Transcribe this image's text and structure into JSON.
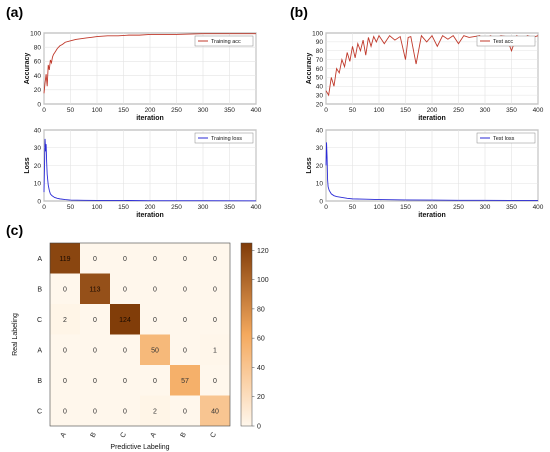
{
  "panels": {
    "a": "(a)",
    "b": "(b)",
    "c": "(c)"
  },
  "chart_data": [
    {
      "id": "train-acc",
      "type": "line",
      "xlabel": "iteration",
      "ylabel": "Accuracy",
      "xlim": [
        0,
        400
      ],
      "ylim": [
        0,
        100
      ],
      "xticks": [
        0,
        50,
        100,
        150,
        200,
        250,
        300,
        350,
        400
      ],
      "yticks": [
        0,
        20,
        40,
        60,
        80,
        100
      ],
      "grid": true,
      "legend_position": "top-right",
      "series": [
        {
          "name": "Training  acc",
          "color": "#c0392b",
          "x": [
            0,
            2,
            4,
            6,
            8,
            10,
            12,
            14,
            16,
            18,
            20,
            25,
            30,
            35,
            40,
            50,
            60,
            70,
            80,
            90,
            100,
            120,
            140,
            160,
            180,
            200,
            250,
            300,
            350,
            400
          ],
          "y": [
            15,
            30,
            42,
            25,
            55,
            48,
            62,
            58,
            66,
            70,
            72,
            78,
            82,
            84,
            87,
            89,
            91,
            92,
            93,
            94,
            95,
            96,
            96,
            97,
            97,
            98,
            98,
            99,
            99,
            99
          ]
        }
      ]
    },
    {
      "id": "train-loss",
      "type": "line",
      "xlabel": "iteration",
      "ylabel": "Loss",
      "xlim": [
        0,
        400
      ],
      "ylim": [
        0,
        40
      ],
      "xticks": [
        0,
        50,
        100,
        150,
        200,
        250,
        300,
        350,
        400
      ],
      "yticks": [
        0,
        10,
        20,
        30,
        40
      ],
      "grid": true,
      "legend_position": "top-right",
      "series": [
        {
          "name": "Training  loss",
          "color": "#2b2bd6",
          "x": [
            0,
            1,
            2,
            3,
            4,
            5,
            6,
            8,
            10,
            12,
            15,
            20,
            25,
            30,
            40,
            50,
            75,
            100,
            150,
            200,
            300,
            400
          ],
          "y": [
            5,
            20,
            35,
            28,
            32,
            22,
            15,
            9,
            6,
            4,
            3,
            2,
            1.5,
            1.2,
            0.8,
            0.5,
            0.4,
            0.3,
            0.3,
            0.2,
            0.2,
            0.1
          ]
        }
      ]
    },
    {
      "id": "test-acc",
      "type": "line",
      "xlabel": "iteration",
      "ylabel": "Accuracy",
      "xlim": [
        0,
        400
      ],
      "ylim": [
        20,
        100
      ],
      "xticks": [
        0,
        50,
        100,
        150,
        200,
        250,
        300,
        350,
        400
      ],
      "yticks": [
        20,
        30,
        40,
        50,
        60,
        70,
        80,
        90,
        100
      ],
      "grid": true,
      "legend_position": "top-right",
      "series": [
        {
          "name": "Test acc",
          "color": "#c0392b",
          "x": [
            0,
            5,
            10,
            15,
            20,
            25,
            30,
            35,
            40,
            45,
            50,
            55,
            60,
            65,
            70,
            75,
            80,
            85,
            90,
            95,
            100,
            110,
            120,
            130,
            140,
            150,
            155,
            160,
            170,
            180,
            190,
            200,
            210,
            220,
            230,
            240,
            250,
            260,
            270,
            280,
            290,
            300,
            310,
            320,
            330,
            340,
            350,
            360,
            370,
            380,
            390,
            400
          ],
          "y": [
            35,
            30,
            50,
            40,
            60,
            55,
            70,
            62,
            78,
            68,
            85,
            72,
            88,
            80,
            92,
            75,
            95,
            85,
            96,
            90,
            97,
            88,
            97,
            92,
            96,
            70,
            95,
            96,
            65,
            97,
            90,
            97,
            85,
            97,
            93,
            97,
            88,
            97,
            95,
            96,
            97,
            90,
            97,
            94,
            97,
            96,
            80,
            97,
            92,
            97,
            95,
            97
          ]
        }
      ]
    },
    {
      "id": "test-loss",
      "type": "line",
      "xlabel": "iteration",
      "ylabel": "Loss",
      "xlim": [
        0,
        400
      ],
      "ylim": [
        0,
        40
      ],
      "xticks": [
        0,
        50,
        100,
        150,
        200,
        250,
        300,
        350,
        400
      ],
      "yticks": [
        0,
        10,
        20,
        30,
        40
      ],
      "grid": true,
      "legend_position": "top-right",
      "series": [
        {
          "name": "Test loss",
          "color": "#2b2bd6",
          "x": [
            0,
            1,
            2,
            3,
            4,
            6,
            8,
            10,
            15,
            20,
            30,
            40,
            50,
            75,
            100,
            150,
            200,
            250,
            300,
            350,
            400
          ],
          "y": [
            20,
            33,
            25,
            12,
            8,
            6,
            5,
            4,
            3,
            2.5,
            2,
            1.5,
            1.2,
            1,
            0.8,
            0.6,
            0.5,
            0.4,
            0.4,
            0.3,
            0.3
          ]
        }
      ]
    },
    {
      "id": "confusion",
      "type": "heatmap",
      "xlabel": "Predictive Labeling",
      "ylabel": "Real Labeling",
      "row_labels": [
        "A",
        "B",
        "C",
        "A",
        "B",
        "C"
      ],
      "col_labels": [
        "A",
        "B",
        "C",
        "A",
        "B",
        "C"
      ],
      "values": [
        [
          119,
          0,
          0,
          0,
          0,
          0
        ],
        [
          0,
          113,
          0,
          0,
          0,
          0
        ],
        [
          2,
          0,
          124,
          0,
          0,
          0
        ],
        [
          0,
          0,
          0,
          50,
          0,
          1
        ],
        [
          0,
          0,
          0,
          0,
          57,
          0
        ],
        [
          0,
          0,
          0,
          2,
          0,
          40
        ]
      ],
      "colorbar": {
        "min": 0,
        "max": 125,
        "ticks": [
          0,
          20,
          40,
          60,
          80,
          100,
          120
        ]
      },
      "colors": {
        "low": "#fff7ec",
        "mid": "#f4a95e",
        "high": "#7f3b08"
      }
    }
  ]
}
